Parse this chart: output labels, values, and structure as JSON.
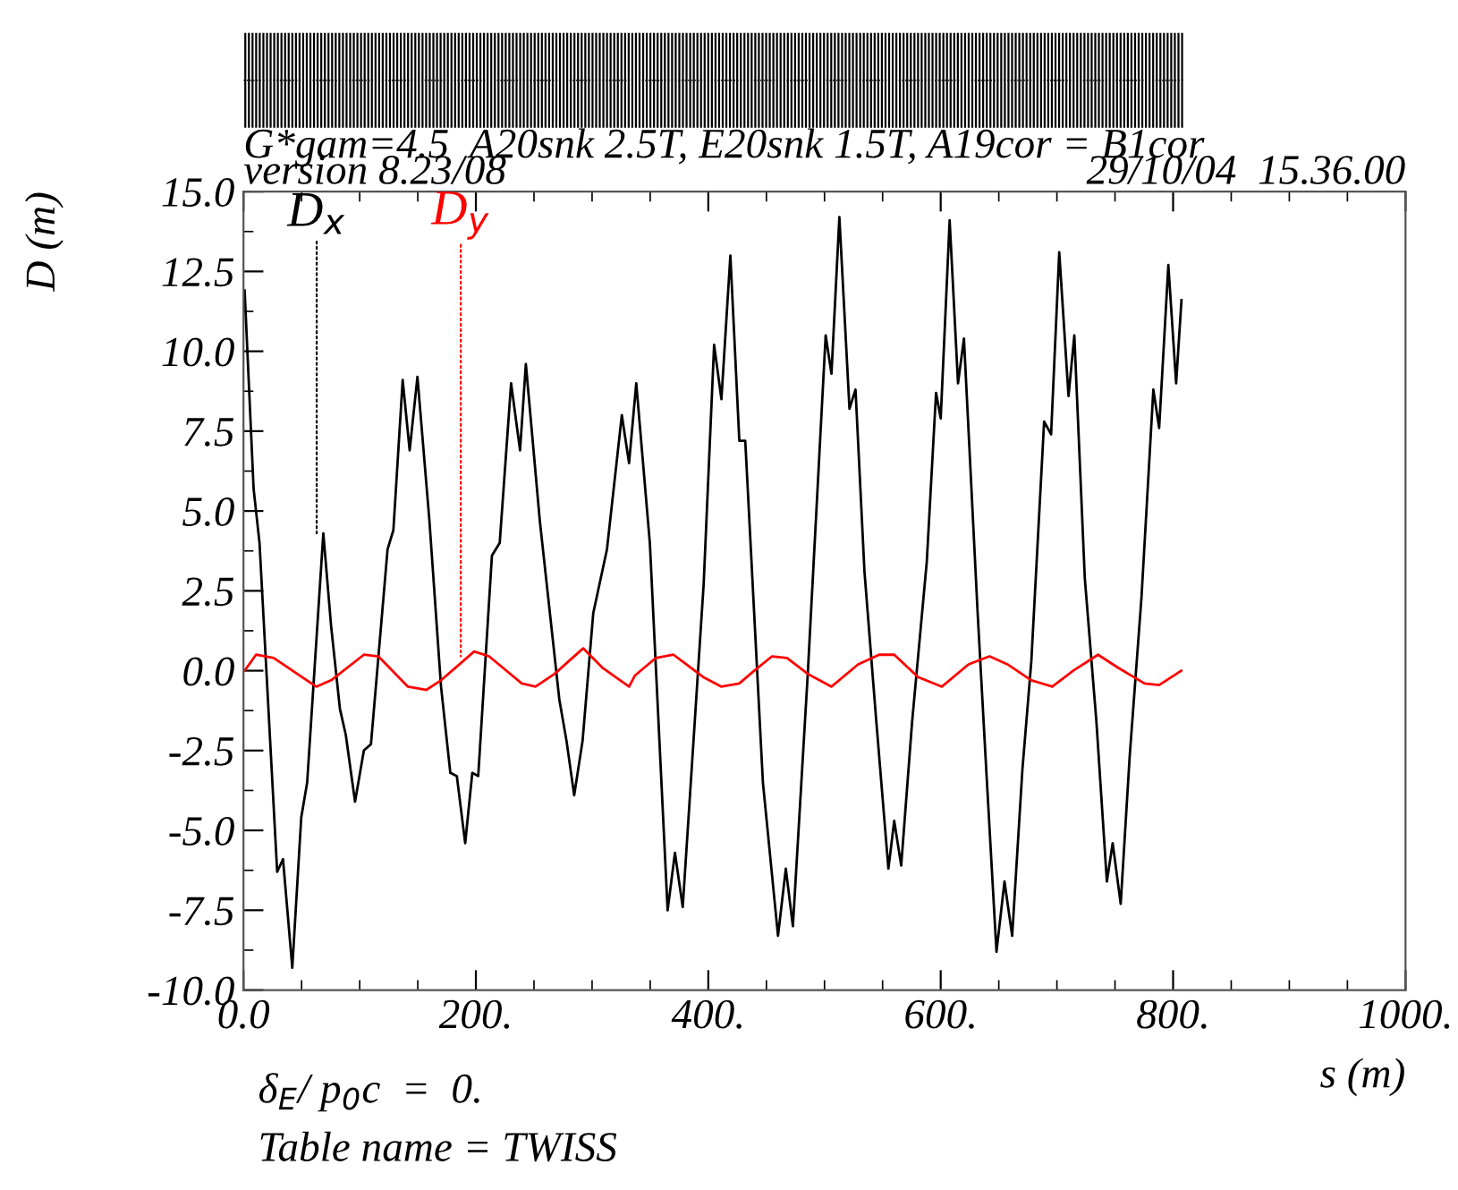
{
  "chart_data": {
    "type": "line",
    "title": "G*gam=4.5  A20snk 2.5T, E20snk 1.5T, A19cor = B1cor",
    "xlabel": "s (m)",
    "ylabel": "D (m)",
    "annotations": [
      "version 8.23/08",
      "29/10/04  15.36.00",
      "δ$_{E}$/ p$_{0}$c  =  0.",
      "Table name = TWISS",
      {
        "text": "D$_{x}$",
        "x": 63,
        "y": 4.3
      },
      {
        "text": "D$_{y}$",
        "x": 187,
        "y": 0.45
      }
    ],
    "xlim": [
      0,
      1000
    ],
    "xticks": [
      {
        "value": 0,
        "label": "0.0"
      },
      {
        "value": 200,
        "label": "200."
      },
      {
        "value": 400,
        "label": "400."
      },
      {
        "value": 600,
        "label": "600."
      },
      {
        "value": 800,
        "label": "800."
      },
      {
        "value": 1000,
        "label": "1000."
      }
    ],
    "ylim": [
      -10,
      15
    ],
    "yticks": [
      {
        "value": -10,
        "label": "-10.0"
      },
      {
        "value": -7.5,
        "label": "-7.5"
      },
      {
        "value": -5,
        "label": "-5.0"
      },
      {
        "value": -2.5,
        "label": "-2.5"
      },
      {
        "value": 0,
        "label": "0.0"
      },
      {
        "value": 2.5,
        "label": "2.5"
      },
      {
        "value": 5,
        "label": "5.0"
      },
      {
        "value": 7.5,
        "label": "7.5"
      },
      {
        "value": 10,
        "label": "10.0"
      },
      {
        "value": 12.5,
        "label": "12.5"
      },
      {
        "value": 15,
        "label": "15.0"
      }
    ],
    "grid": false,
    "legend": false,
    "marker": "none",
    "line_style": "solid",
    "series": [
      {
        "color": "#000000",
        "x": [
          1,
          8.7,
          13.8,
          29,
          34,
          42,
          49.7,
          54.8,
          68.7,
          75.4,
          83,
          88,
          96,
          103.6,
          109.7,
          124,
          129,
          137,
          143,
          149.7,
          160,
          170,
          178,
          183.6,
          190.8,
          196.9,
          202,
          213.8,
          220.5,
          230.3,
          238,
          243,
          255,
          271.8,
          278,
          284.6,
          291.8,
          301,
          312.8,
          325.6,
          331.8,
          338,
          349.7,
          365,
          371.3,
          378,
          396,
          405,
          411.3,
          419,
          426.7,
          431.8,
          447,
          460,
          466.7,
          472.8,
          485.6,
          501,
          506,
          512.8,
          521.5,
          526.7,
          534.4,
          544.6,
          555,
          560,
          566,
          575.4,
          588,
          596,
          600,
          607.7,
          614.9,
          620,
          631.8,
          639.5,
          648,
          654.9,
          661.5,
          670.3,
          678,
          689,
          695,
          702,
          710,
          715,
          724,
          734,
          743,
          748,
          754.9,
          762.6,
          772.8,
          783,
          788,
          795.9,
          802.6,
          807.2
        ],
        "values": [
          11.9,
          5.7,
          4.0,
          -6.3,
          -5.9,
          -9.3,
          -4.6,
          -3.5,
          4.3,
          1.4,
          -1.2,
          -2.0,
          -4.1,
          -2.5,
          -2.3,
          3.8,
          4.4,
          9.1,
          6.9,
          9.2,
          4.7,
          -0.5,
          -3.2,
          -3.3,
          -5.4,
          -3.2,
          -3.3,
          3.6,
          4.0,
          9.0,
          6.9,
          9.6,
          4.7,
          -0.9,
          -2.2,
          -3.9,
          -2.2,
          1.8,
          3.8,
          8.0,
          6.5,
          9.0,
          4.0,
          -7.5,
          -5.7,
          -7.4,
          2.7,
          10.2,
          8.5,
          13.0,
          7.2,
          7.2,
          -3.5,
          -8.3,
          -6.2,
          -8.0,
          -0.1,
          10.5,
          9.3,
          14.2,
          8.2,
          8.8,
          3.1,
          -1.6,
          -6.2,
          -4.7,
          -6.1,
          -1.6,
          3.4,
          8.7,
          7.9,
          14.1,
          9.0,
          10.4,
          1.8,
          -3.3,
          -8.8,
          -6.6,
          -8.3,
          -3.1,
          0.3,
          7.8,
          7.4,
          13.1,
          8.6,
          10.5,
          2.9,
          -1.6,
          -6.6,
          -5.4,
          -7.3,
          -2.7,
          2.3,
          8.8,
          7.6,
          12.7,
          9.0,
          11.6
        ]
      },
      {
        "color": "#ff0000",
        "x": [
          1,
          10.8,
          26,
          62.6,
          75.4,
          103.6,
          116,
          141.5,
          157.4,
          170,
          198.5,
          211.3,
          239.5,
          251.3,
          267.7,
          292.3,
          308.7,
          331.8,
          336.9,
          354.9,
          370,
          395.6,
          411.3,
          426.7,
          439.5,
          454.9,
          467.7,
          485.6,
          506,
          529,
          547,
          560,
          580.5,
          601,
          624,
          642,
          657.4,
          678,
          696,
          714,
          735.4,
          752.3,
          775.4,
          788,
          807
        ],
        "values": [
          0.0,
          0.5,
          0.4,
          -0.5,
          -0.3,
          0.5,
          0.45,
          -0.5,
          -0.6,
          -0.3,
          0.6,
          0.45,
          -0.4,
          -0.5,
          -0.1,
          0.7,
          0.1,
          -0.5,
          -0.15,
          0.4,
          0.5,
          -0.2,
          -0.5,
          -0.4,
          0.0,
          0.45,
          0.4,
          -0.1,
          -0.5,
          0.2,
          0.5,
          0.5,
          -0.2,
          -0.5,
          0.2,
          0.45,
          0.2,
          -0.3,
          -0.5,
          0.0,
          0.5,
          0.1,
          -0.4,
          -0.45,
          0.0
        ]
      }
    ]
  }
}
